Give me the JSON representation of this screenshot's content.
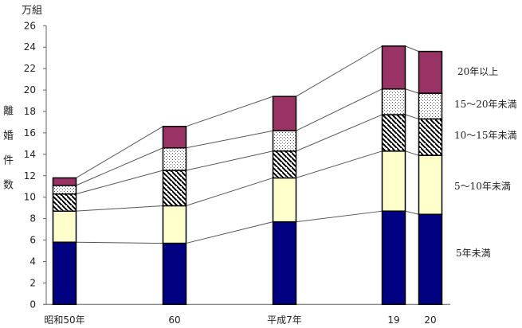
{
  "chart_data": {
    "type": "bar",
    "stacked": true,
    "unit_label": "万組",
    "ylabel": "離婚件数",
    "ylim": [
      0,
      26
    ],
    "yticks": [
      0,
      2,
      4,
      6,
      8,
      10,
      12,
      14,
      16,
      18,
      20,
      22,
      24,
      26
    ],
    "categories": [
      "昭和50年",
      "60",
      "平成7年",
      "19",
      "20"
    ],
    "series": [
      {
        "name": "5年未満",
        "color": "#000080",
        "pattern": "solid",
        "values": [
          5.8,
          5.7,
          7.7,
          8.7,
          8.4
        ]
      },
      {
        "name": "5～10年未満",
        "color": "#ffffcc",
        "pattern": "solid",
        "values": [
          2.9,
          3.5,
          4.1,
          5.6,
          5.5
        ]
      },
      {
        "name": "10～15年未満",
        "color": "#ffffff",
        "pattern": "diagonal-hatch",
        "values": [
          1.6,
          3.3,
          2.5,
          3.4,
          3.4
        ]
      },
      {
        "name": "15～20年未満",
        "color": "#ffffff",
        "pattern": "dots",
        "values": [
          0.8,
          2.1,
          1.9,
          2.4,
          2.4
        ]
      },
      {
        "name": "20年以上",
        "color": "#993366",
        "pattern": "solid",
        "values": [
          0.7,
          2.0,
          3.2,
          4.0,
          3.9
        ]
      }
    ],
    "legend": "right",
    "series_lines": true,
    "grid": false
  }
}
